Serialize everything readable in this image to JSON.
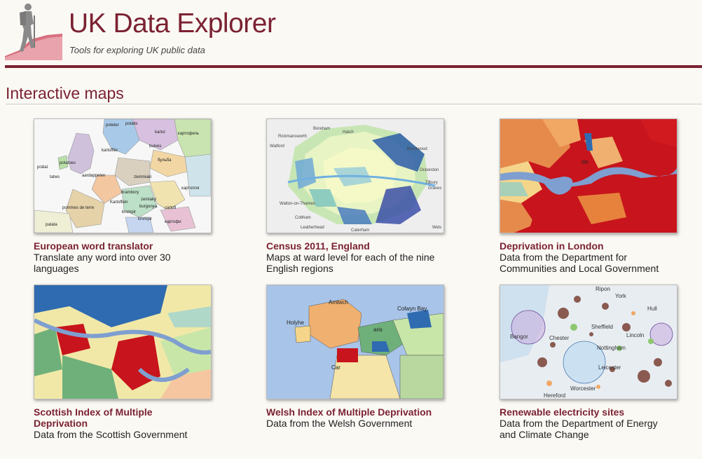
{
  "header": {
    "title": "UK Data Explorer",
    "tagline": "Tools for exploring UK public data"
  },
  "section": {
    "title": "Interactive maps"
  },
  "cards": [
    {
      "title": "European word translator",
      "description": "Translate any word into over 30 languages",
      "map_words": [
        "potatis",
        "poteter",
        "kartul",
        "картофель",
        "kartoffler",
        "bulves",
        "бульба",
        "prátaí",
        "potatoes",
        "ziemniaki",
        "tatws",
        "aardappelen",
        "brambory",
        "картопля",
        "zemiaky",
        "Kartoffeln",
        "burgonya",
        "pommes de terre",
        "krompir",
        "cartofi",
        "patata",
        "krompir",
        "картофи"
      ]
    },
    {
      "title": "Census 2011, England",
      "description": "Maps at ward level for each of the nine English regions",
      "map_words": [
        "Boreham",
        "Rickmansworth",
        "Hatch",
        "Watford",
        "Brentwood",
        "Ockendon",
        "Tilbury",
        "Graves",
        "Walton-on-Thames",
        "Cobham",
        "Leatherhead",
        "Caterham",
        "Wels"
      ]
    },
    {
      "title": "Deprivation in London",
      "description": "Data from the Department for Communities and Local Government",
      "map_words": [
        "on"
      ]
    },
    {
      "title": "Scottish Index of Multiple Deprivation",
      "description": "Data from the Scottish Government",
      "map_words": []
    },
    {
      "title": "Welsh Index of Multiple Deprivation",
      "description": "Data from the Welsh Government",
      "map_words": [
        "Amlwch",
        "Holyhe",
        "aris",
        "Colwyn Bay",
        "Car"
      ]
    },
    {
      "title": "Renewable electricity sites",
      "description": "Data from the Department of Energy and Climate Change",
      "map_words": [
        "Ripon",
        "York",
        "Hull",
        "Sheffield",
        "Bangor",
        "Chester",
        "Lincoln",
        "Nottingham",
        "Leicester",
        "Worcester",
        "Hereford"
      ]
    }
  ],
  "colors": {
    "brand": "#7b2232",
    "text": "#222222",
    "background": "#fbf9f4"
  },
  "icons": {
    "logo": "hiker-on-hill-icon"
  }
}
